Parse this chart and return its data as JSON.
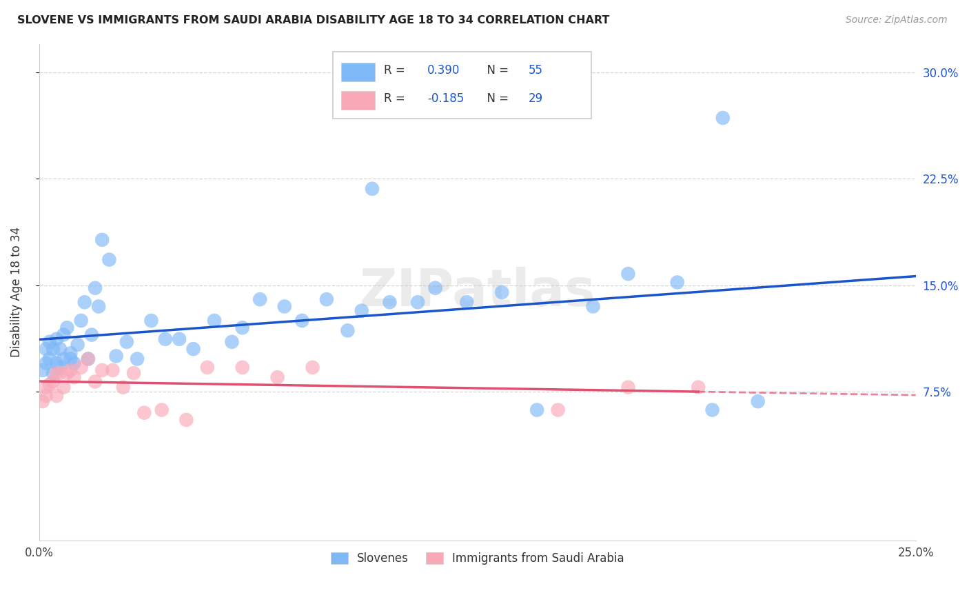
{
  "title": "SLOVENE VS IMMIGRANTS FROM SAUDI ARABIA DISABILITY AGE 18 TO 34 CORRELATION CHART",
  "source": "Source: ZipAtlas.com",
  "ylabel": "Disability Age 18 to 34",
  "xlim": [
    0.0,
    0.25
  ],
  "ylim": [
    -0.03,
    0.32
  ],
  "yticks": [
    0.075,
    0.15,
    0.225,
    0.3
  ],
  "yticklabels": [
    "7.5%",
    "15.0%",
    "22.5%",
    "30.0%"
  ],
  "watermark": "ZIPatlas",
  "blue_R": 0.39,
  "blue_N": 55,
  "pink_R": -0.185,
  "pink_N": 29,
  "blue_color": "#7EB8F7",
  "pink_color": "#F9A8B8",
  "blue_line_color": "#1A55CC",
  "pink_line_color": "#E05070",
  "blue_label": "Slovenes",
  "pink_label": "Immigrants from Saudi Arabia",
  "blue_x": [
    0.001,
    0.002,
    0.002,
    0.003,
    0.003,
    0.004,
    0.004,
    0.005,
    0.005,
    0.006,
    0.006,
    0.007,
    0.007,
    0.008,
    0.009,
    0.009,
    0.01,
    0.011,
    0.012,
    0.013,
    0.014,
    0.015,
    0.016,
    0.017,
    0.018,
    0.02,
    0.022,
    0.025,
    0.028,
    0.032,
    0.036,
    0.04,
    0.044,
    0.05,
    0.055,
    0.058,
    0.063,
    0.07,
    0.075,
    0.082,
    0.088,
    0.092,
    0.095,
    0.1,
    0.108,
    0.113,
    0.122,
    0.132,
    0.142,
    0.158,
    0.168,
    0.182,
    0.195,
    0.205,
    0.192
  ],
  "blue_y": [
    0.09,
    0.095,
    0.105,
    0.098,
    0.11,
    0.105,
    0.088,
    0.112,
    0.095,
    0.105,
    0.092,
    0.115,
    0.098,
    0.12,
    0.102,
    0.098,
    0.095,
    0.108,
    0.125,
    0.138,
    0.098,
    0.115,
    0.148,
    0.135,
    0.182,
    0.168,
    0.1,
    0.11,
    0.098,
    0.125,
    0.112,
    0.112,
    0.105,
    0.125,
    0.11,
    0.12,
    0.14,
    0.135,
    0.125,
    0.14,
    0.118,
    0.132,
    0.218,
    0.138,
    0.138,
    0.148,
    0.138,
    0.145,
    0.062,
    0.135,
    0.158,
    0.152,
    0.268,
    0.068,
    0.062
  ],
  "pink_x": [
    0.001,
    0.002,
    0.002,
    0.003,
    0.004,
    0.005,
    0.005,
    0.006,
    0.007,
    0.008,
    0.009,
    0.01,
    0.012,
    0.014,
    0.016,
    0.018,
    0.021,
    0.024,
    0.027,
    0.03,
    0.035,
    0.042,
    0.048,
    0.058,
    0.068,
    0.078,
    0.148,
    0.168,
    0.188
  ],
  "pink_y": [
    0.068,
    0.072,
    0.078,
    0.08,
    0.082,
    0.088,
    0.072,
    0.088,
    0.078,
    0.088,
    0.09,
    0.085,
    0.092,
    0.098,
    0.082,
    0.09,
    0.09,
    0.078,
    0.088,
    0.06,
    0.062,
    0.055,
    0.092,
    0.092,
    0.085,
    0.092,
    0.062,
    0.078,
    0.078
  ],
  "background_color": "#FFFFFF",
  "grid_color": "#CCCCCC"
}
